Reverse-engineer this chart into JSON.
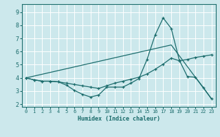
{
  "xlabel": "Humidex (Indice chaleur)",
  "bg_color": "#cce8ec",
  "grid_color": "#ffffff",
  "line_color": "#1a6b6b",
  "xlim": [
    -0.5,
    23.5
  ],
  "ylim": [
    1.8,
    9.6
  ],
  "xticks": [
    0,
    1,
    2,
    3,
    4,
    5,
    6,
    7,
    8,
    9,
    10,
    11,
    12,
    13,
    14,
    15,
    16,
    17,
    18,
    19,
    20,
    21,
    22,
    23
  ],
  "yticks": [
    2,
    3,
    4,
    5,
    6,
    7,
    8,
    9
  ],
  "curve1_x": [
    0,
    1,
    2,
    3,
    4,
    5,
    6,
    7,
    8,
    9,
    10,
    11,
    12,
    13,
    14,
    15,
    16,
    17,
    18,
    19,
    20,
    21,
    22,
    23
  ],
  "curve1_y": [
    4.0,
    3.85,
    3.75,
    3.75,
    3.7,
    3.45,
    3.05,
    2.75,
    2.55,
    2.7,
    3.3,
    3.3,
    3.3,
    3.6,
    3.95,
    5.4,
    7.25,
    8.55,
    7.75,
    5.35,
    4.1,
    4.05,
    3.25,
    2.4
  ],
  "curve2_x": [
    0,
    1,
    2,
    3,
    4,
    5,
    6,
    7,
    8,
    9,
    10,
    11,
    12,
    13,
    14,
    15,
    16,
    17,
    18,
    19,
    20,
    21,
    22,
    23
  ],
  "curve2_y": [
    4.0,
    3.85,
    3.75,
    3.75,
    3.7,
    3.6,
    3.5,
    3.4,
    3.3,
    3.2,
    3.4,
    3.6,
    3.75,
    3.9,
    4.05,
    4.3,
    4.65,
    5.05,
    5.5,
    5.3,
    5.4,
    5.55,
    5.65,
    5.75
  ],
  "curve3_x": [
    0,
    18,
    23
  ],
  "curve3_y": [
    4.0,
    6.5,
    2.4
  ],
  "figsize": [
    3.2,
    2.0
  ],
  "dpi": 100
}
